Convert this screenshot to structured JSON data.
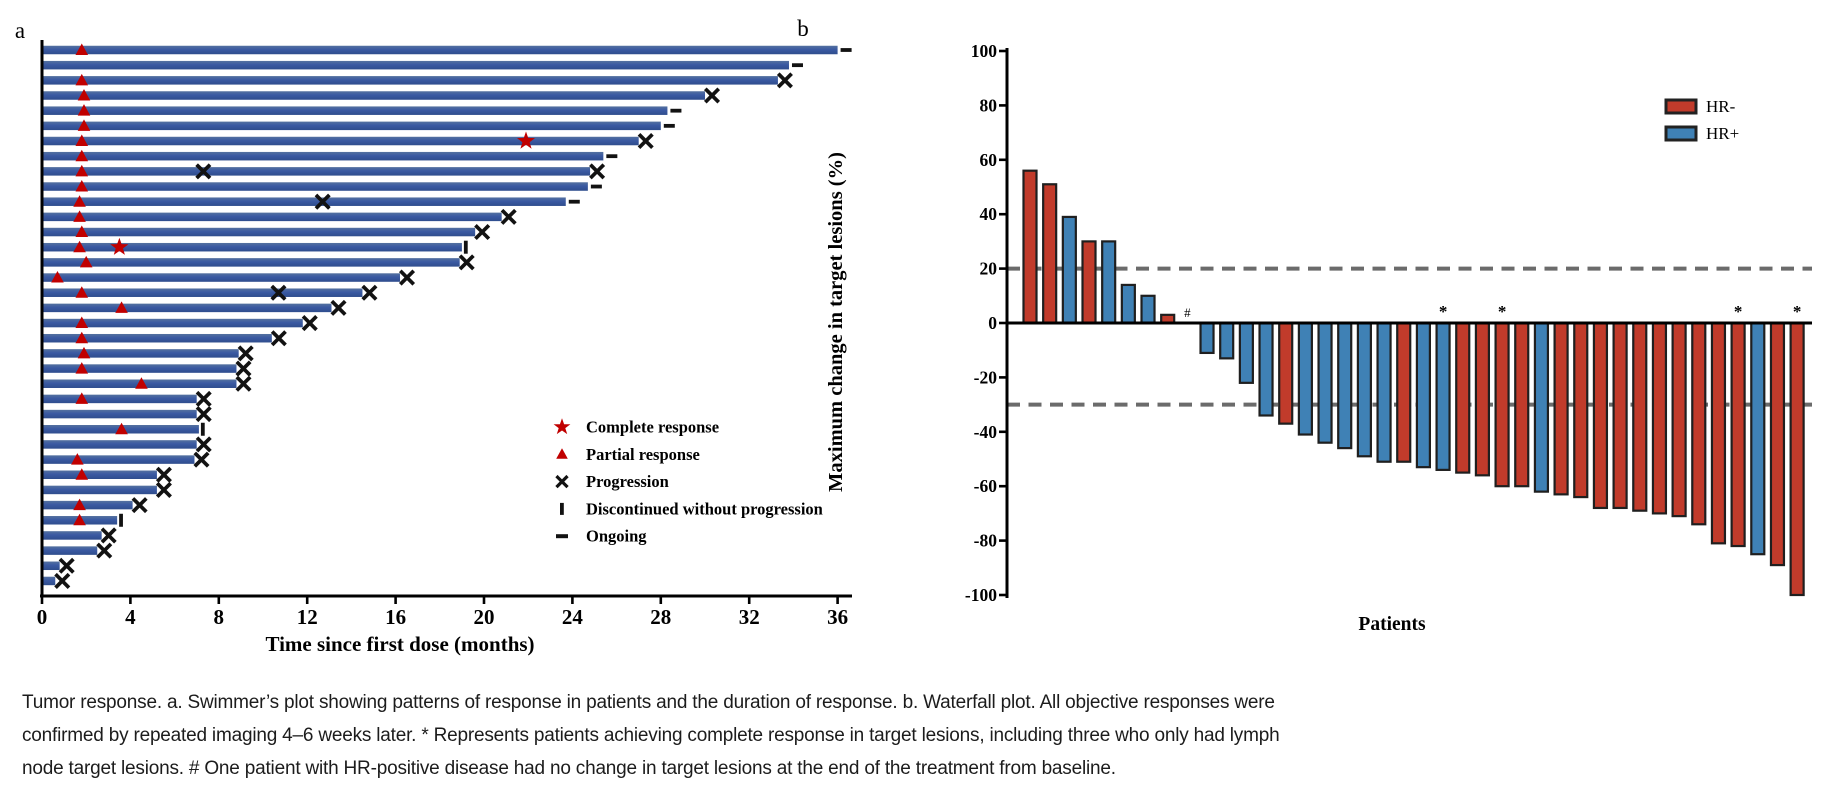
{
  "figure": {
    "panel_a_label": "a",
    "panel_b_label": "b",
    "caption_lines": [
      "Tumor response. a. Swimmer’s plot showing patterns of response in patients and the duration of response. b. Waterfall plot. All objective responses were",
      "confirmed by repeated imaging 4–6 weeks later. * Represents patients achieving complete response in target lesions, including three who only had lymph",
      "node target lesions. # One patient with HR-positive disease had no change in target lesions at the end of the treatment from baseline."
    ]
  },
  "chart_data": [
    {
      "type": "swimmer",
      "xlabel": "Time since first dose (months)",
      "x_ticks": [
        0,
        4,
        8,
        12,
        16,
        20,
        24,
        28,
        32,
        36
      ],
      "xlim": [
        0,
        36.5
      ],
      "bar_color": "#3A57A0",
      "marker_red": "#C00000",
      "marker_black": "#121212",
      "legend": [
        {
          "marker": "star",
          "label": "Complete response"
        },
        {
          "marker": "triangle",
          "label": "Partial response"
        },
        {
          "marker": "x",
          "label": "Progression"
        },
        {
          "marker": "bar",
          "label": "Discontinued without progression"
        },
        {
          "marker": "dash",
          "label": "Ongoing"
        }
      ],
      "patients": [
        {
          "months": 36.0,
          "partial_response_month": 1.8,
          "complete_response_month": null,
          "progression_months": [],
          "end_event": "ongoing"
        },
        {
          "months": 33.8,
          "partial_response_month": null,
          "complete_response_month": null,
          "progression_months": [],
          "end_event": "ongoing"
        },
        {
          "months": 33.3,
          "partial_response_month": 1.8,
          "complete_response_month": null,
          "progression_months": [],
          "end_event": "progression"
        },
        {
          "months": 30.0,
          "partial_response_month": 1.9,
          "complete_response_month": null,
          "progression_months": [],
          "end_event": "progression"
        },
        {
          "months": 28.3,
          "partial_response_month": 1.9,
          "complete_response_month": null,
          "progression_months": [],
          "end_event": "ongoing"
        },
        {
          "months": 28.0,
          "partial_response_month": 1.9,
          "complete_response_month": null,
          "progression_months": [],
          "end_event": "ongoing"
        },
        {
          "months": 27.0,
          "partial_response_month": 1.8,
          "complete_response_month": 21.9,
          "progression_months": [],
          "end_event": "progression"
        },
        {
          "months": 25.4,
          "partial_response_month": 1.8,
          "complete_response_month": null,
          "progression_months": [],
          "end_event": "ongoing"
        },
        {
          "months": 24.8,
          "partial_response_month": 1.8,
          "complete_response_month": null,
          "progression_months": [
            7.3
          ],
          "end_event": "progression"
        },
        {
          "months": 24.7,
          "partial_response_month": 1.8,
          "complete_response_month": null,
          "progression_months": [],
          "end_event": "ongoing"
        },
        {
          "months": 23.7,
          "partial_response_month": 1.7,
          "complete_response_month": null,
          "progression_months": [
            12.7
          ],
          "end_event": "ongoing"
        },
        {
          "months": 20.8,
          "partial_response_month": 1.7,
          "complete_response_month": null,
          "progression_months": [],
          "end_event": "progression"
        },
        {
          "months": 19.6,
          "partial_response_month": 1.8,
          "complete_response_month": null,
          "progression_months": [],
          "end_event": "progression"
        },
        {
          "months": 19.0,
          "partial_response_month": 1.7,
          "complete_response_month": 3.5,
          "progression_months": [],
          "end_event": "discontinued"
        },
        {
          "months": 18.9,
          "partial_response_month": 2.0,
          "complete_response_month": null,
          "progression_months": [],
          "end_event": "progression"
        },
        {
          "months": 16.2,
          "partial_response_month": 0.7,
          "complete_response_month": null,
          "progression_months": [],
          "end_event": "progression"
        },
        {
          "months": 14.5,
          "partial_response_month": 1.8,
          "complete_response_month": null,
          "progression_months": [
            10.7
          ],
          "end_event": "progression"
        },
        {
          "months": 13.1,
          "partial_response_month": 3.6,
          "complete_response_month": null,
          "progression_months": [],
          "end_event": "progression"
        },
        {
          "months": 11.8,
          "partial_response_month": 1.8,
          "complete_response_month": null,
          "progression_months": [],
          "end_event": "progression"
        },
        {
          "months": 10.4,
          "partial_response_month": 1.8,
          "complete_response_month": null,
          "progression_months": [],
          "end_event": "progression"
        },
        {
          "months": 8.9,
          "partial_response_month": 1.9,
          "complete_response_month": null,
          "progression_months": [],
          "end_event": "progression"
        },
        {
          "months": 8.8,
          "partial_response_month": 1.8,
          "complete_response_month": null,
          "progression_months": [],
          "end_event": "progression"
        },
        {
          "months": 8.8,
          "partial_response_month": 4.5,
          "complete_response_month": null,
          "progression_months": [],
          "end_event": "progression"
        },
        {
          "months": 7.0,
          "partial_response_month": 1.8,
          "complete_response_month": null,
          "progression_months": [],
          "end_event": "progression"
        },
        {
          "months": 7.0,
          "partial_response_month": null,
          "complete_response_month": null,
          "progression_months": [],
          "end_event": "progression"
        },
        {
          "months": 7.1,
          "partial_response_month": 3.6,
          "complete_response_month": null,
          "progression_months": [],
          "end_event": "discontinued"
        },
        {
          "months": 7.0,
          "partial_response_month": null,
          "complete_response_month": null,
          "progression_months": [],
          "end_event": "progression"
        },
        {
          "months": 6.9,
          "partial_response_month": 1.6,
          "complete_response_month": null,
          "progression_months": [],
          "end_event": "progression"
        },
        {
          "months": 5.2,
          "partial_response_month": 1.8,
          "complete_response_month": null,
          "progression_months": [],
          "end_event": "progression"
        },
        {
          "months": 5.2,
          "partial_response_month": null,
          "complete_response_month": null,
          "progression_months": [],
          "end_event": "progression"
        },
        {
          "months": 4.1,
          "partial_response_month": 1.7,
          "complete_response_month": null,
          "progression_months": [],
          "end_event": "progression"
        },
        {
          "months": 3.4,
          "partial_response_month": 1.7,
          "complete_response_month": null,
          "progression_months": [],
          "end_event": "discontinued"
        },
        {
          "months": 2.7,
          "partial_response_month": null,
          "complete_response_month": null,
          "progression_months": [],
          "end_event": "progression"
        },
        {
          "months": 2.5,
          "partial_response_month": null,
          "complete_response_month": null,
          "progression_months": [],
          "end_event": "progression"
        },
        {
          "months": 0.8,
          "partial_response_month": null,
          "complete_response_month": null,
          "progression_months": [],
          "end_event": "progression"
        },
        {
          "months": 0.6,
          "partial_response_month": null,
          "complete_response_month": null,
          "progression_months": [],
          "end_event": "progression"
        }
      ]
    },
    {
      "type": "waterfall",
      "ylabel": "Maximum change in target lesions (%)",
      "xlabel": "Patients",
      "ylim": [
        -100,
        100
      ],
      "y_ticks": [
        100,
        80,
        60,
        40,
        20,
        0,
        -20,
        -40,
        -60,
        -80,
        -100
      ],
      "reference_lines": [
        20,
        -30
      ],
      "colors": {
        "HR-": "#C13B2B",
        "HR+": "#3F81B5",
        "bar_border": "#1f1f1f",
        "dashed": "#6b6b6b"
      },
      "legend": [
        {
          "label": "HR-",
          "group": "HR-"
        },
        {
          "label": "HR+",
          "group": "HR+"
        }
      ],
      "bars": [
        {
          "value": 56,
          "group": "HR-"
        },
        {
          "value": 51,
          "group": "HR-"
        },
        {
          "value": 39,
          "group": "HR+"
        },
        {
          "value": 30,
          "group": "HR-"
        },
        {
          "value": 30,
          "group": "HR+"
        },
        {
          "value": 14,
          "group": "HR+"
        },
        {
          "value": 10,
          "group": "HR+"
        },
        {
          "value": 3,
          "group": "HR-"
        },
        {
          "value": 0,
          "group": "HR+",
          "annotation": "#"
        },
        {
          "value": -11,
          "group": "HR+"
        },
        {
          "value": -13,
          "group": "HR+"
        },
        {
          "value": -22,
          "group": "HR+"
        },
        {
          "value": -34,
          "group": "HR+"
        },
        {
          "value": -37,
          "group": "HR-"
        },
        {
          "value": -41,
          "group": "HR+"
        },
        {
          "value": -44,
          "group": "HR+"
        },
        {
          "value": -46,
          "group": "HR+"
        },
        {
          "value": -49,
          "group": "HR+"
        },
        {
          "value": -51,
          "group": "HR+"
        },
        {
          "value": -51,
          "group": "HR-"
        },
        {
          "value": -53,
          "group": "HR+"
        },
        {
          "value": -54,
          "group": "HR+",
          "annotation": "*"
        },
        {
          "value": -55,
          "group": "HR-"
        },
        {
          "value": -56,
          "group": "HR-"
        },
        {
          "value": -60,
          "group": "HR-",
          "annotation": "*"
        },
        {
          "value": -60,
          "group": "HR-"
        },
        {
          "value": -62,
          "group": "HR+"
        },
        {
          "value": -63,
          "group": "HR-"
        },
        {
          "value": -64,
          "group": "HR-"
        },
        {
          "value": -68,
          "group": "HR-"
        },
        {
          "value": -68,
          "group": "HR-"
        },
        {
          "value": -69,
          "group": "HR-"
        },
        {
          "value": -70,
          "group": "HR-"
        },
        {
          "value": -71,
          "group": "HR-"
        },
        {
          "value": -74,
          "group": "HR-"
        },
        {
          "value": -81,
          "group": "HR-"
        },
        {
          "value": -82,
          "group": "HR-",
          "annotation": "*"
        },
        {
          "value": -85,
          "group": "HR+"
        },
        {
          "value": -89,
          "group": "HR-"
        },
        {
          "value": -100,
          "group": "HR-",
          "annotation": "*"
        }
      ]
    }
  ]
}
